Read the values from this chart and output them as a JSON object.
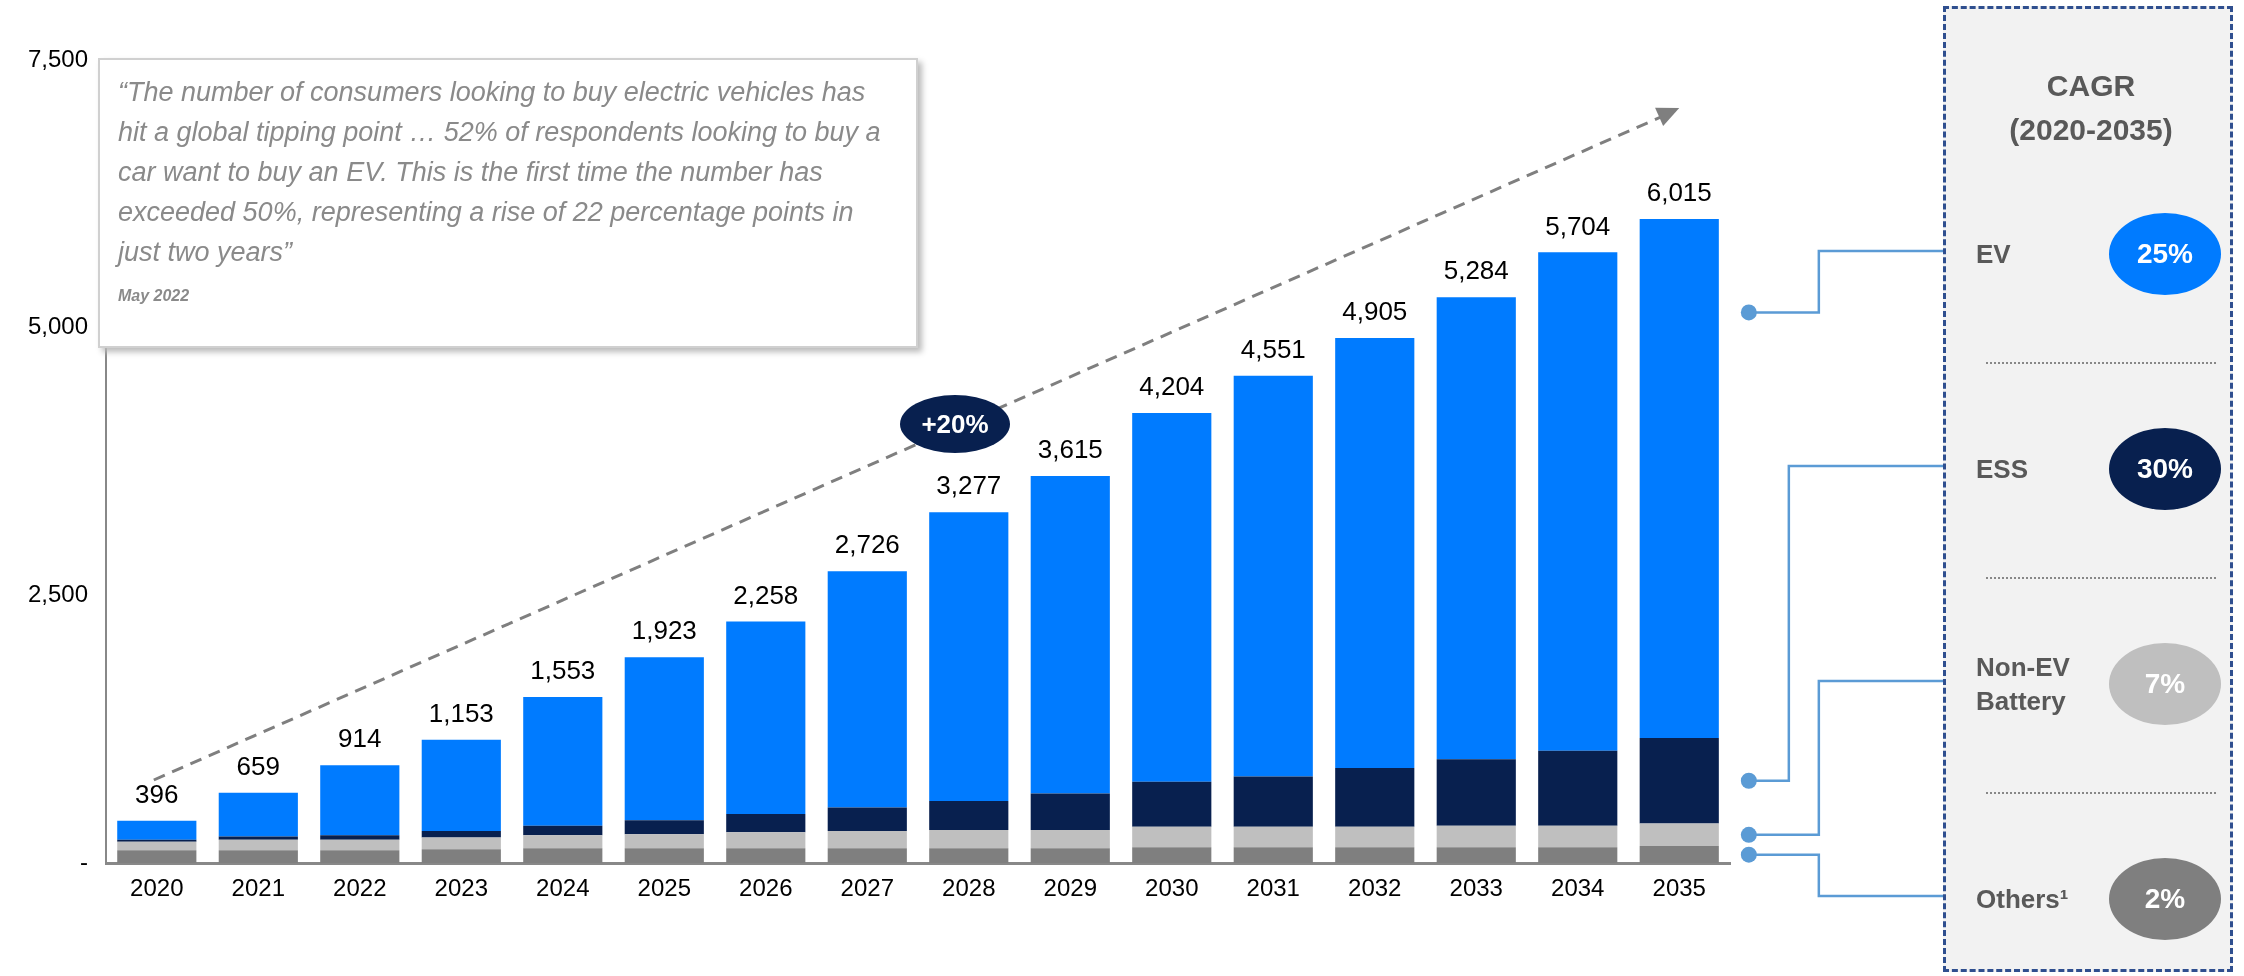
{
  "chart_data": {
    "type": "bar",
    "stacked": true,
    "categories": [
      "2020",
      "2021",
      "2022",
      "2023",
      "2024",
      "2025",
      "2026",
      "2027",
      "2028",
      "2029",
      "2030",
      "2031",
      "2032",
      "2033",
      "2034",
      "2035"
    ],
    "series": [
      {
        "name": "Others¹",
        "color": "#7f7f7f",
        "values": [
          120,
          120,
          120,
          130,
          140,
          140,
          140,
          140,
          140,
          140,
          150,
          150,
          150,
          150,
          150,
          160
        ]
      },
      {
        "name": "Non-EV Battery",
        "color": "#bfbfbf",
        "values": [
          80,
          100,
          100,
          110,
          120,
          130,
          150,
          160,
          170,
          170,
          190,
          190,
          190,
          200,
          200,
          210
        ]
      },
      {
        "name": "ESS",
        "color": "#08204f",
        "values": [
          20,
          30,
          40,
          60,
          90,
          130,
          170,
          220,
          270,
          340,
          420,
          470,
          550,
          620,
          700,
          800
        ]
      },
      {
        "name": "EV",
        "color": "#007bff",
        "values": [
          176,
          409,
          654,
          853,
          1203,
          1523,
          1798,
          2206,
          2697,
          2965,
          3444,
          3741,
          4015,
          4314,
          4654,
          4845
        ]
      }
    ],
    "totals": [
      "396",
      "659",
      "914",
      "1,153",
      "1,553",
      "1,923",
      "2,258",
      "2,726",
      "3,277",
      "3,615",
      "4,204",
      "4,551",
      "4,905",
      "5,284",
      "5,704",
      "6,015"
    ],
    "ylim": [
      0,
      7500
    ],
    "yticks": [
      {
        "value": 0,
        "label": "-"
      },
      {
        "value": 2500,
        "label": "2,500"
      },
      {
        "value": 5000,
        "label": "5,000"
      },
      {
        "value": 7500,
        "label": "7,500"
      }
    ],
    "grid": false,
    "legend": "right",
    "legend_title": "CAGR (2020-2035)",
    "annotations": [
      "2%",
      "7%",
      "30%",
      "25%",
      "“The number of consumers looking to buy electric vehicles has hit a global tipping point … 52% of respondents looking to buy a car want to buy an EV. This is the first time the number has exceeded 50%, representing a rise of 22 percentage points in just two years”",
      "May 2022",
      "+20%"
    ]
  }
}
